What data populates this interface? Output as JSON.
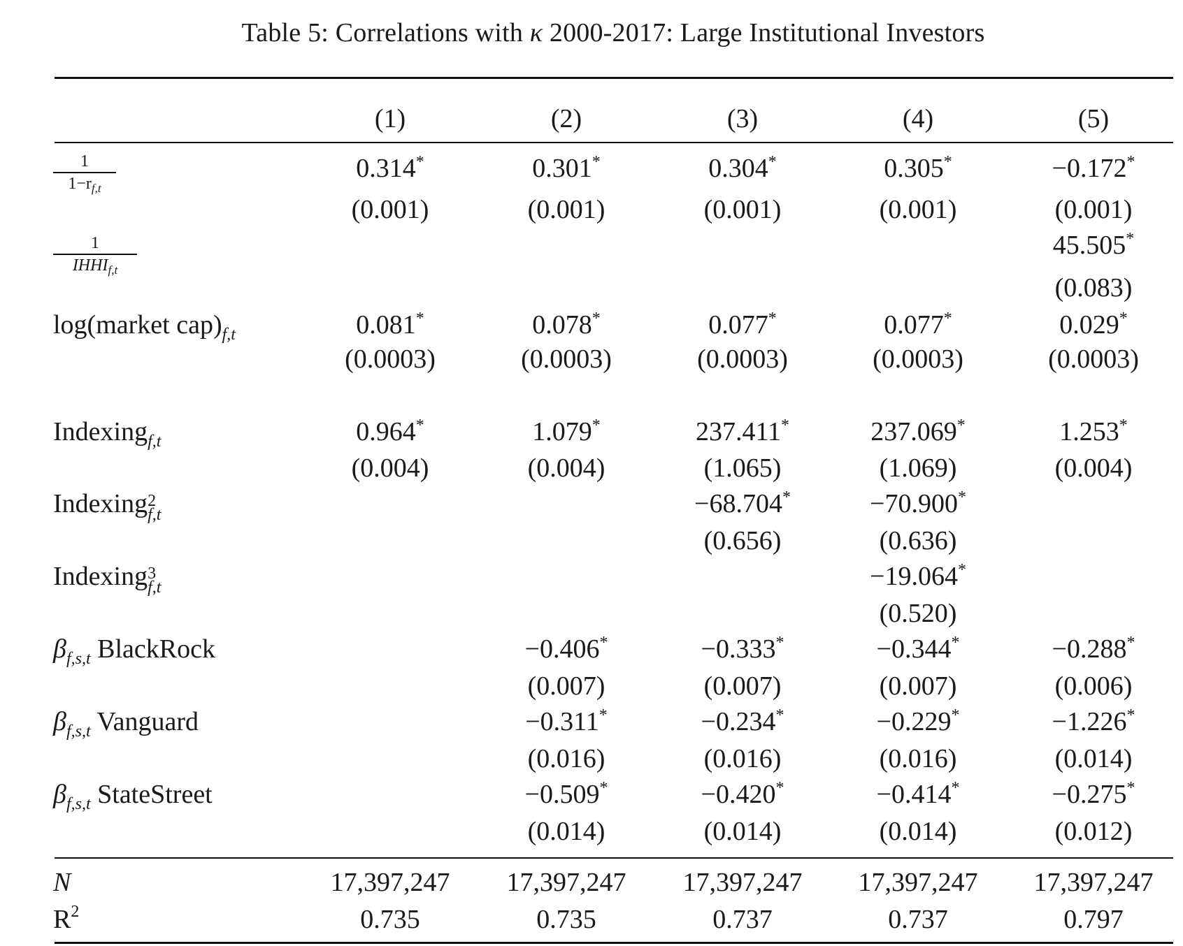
{
  "table": {
    "caption_prefix": "Table 5: Correlations with ",
    "caption_kappa": "κ",
    "caption_suffix": " 2000-2017: Large Institutional Investors",
    "columns": [
      "(1)",
      "(2)",
      "(3)",
      "(4)",
      "(5)"
    ],
    "labels": {
      "inv_one_minus_r_num": "1",
      "inv_one_minus_r_den": "1−r",
      "inv_ihhi_num": "1",
      "inv_ihhi_den": "IHHI",
      "sub_ft": "f,t",
      "log_mcap": "log(market cap)",
      "indexing": "Indexing",
      "sq": "2",
      "cube": "3",
      "beta": "β",
      "sub_fst": "f,s,t",
      "blackrock": " BlackRock",
      "vanguard": " Vanguard",
      "statestreet": " StateStreet",
      "n": "N",
      "r2": "R",
      "r2_sup": "2"
    },
    "rows": {
      "inv_one_minus_r": {
        "coef": [
          "0.314",
          "0.301",
          "0.304",
          "0.305",
          "−0.172"
        ],
        "se": [
          "(0.001)",
          "(0.001)",
          "(0.001)",
          "(0.001)",
          "(0.001)"
        ]
      },
      "inv_ihhi": {
        "coef": [
          "",
          "",
          "",
          "",
          "45.505"
        ],
        "se": [
          "",
          "",
          "",
          "",
          "(0.083)"
        ]
      },
      "log_mcap": {
        "coef": [
          "0.081",
          "0.078",
          "0.077",
          "0.077",
          "0.029"
        ],
        "se": [
          "(0.0003)",
          "(0.0003)",
          "(0.0003)",
          "(0.0003)",
          "(0.0003)"
        ]
      },
      "indexing": {
        "coef": [
          "0.964",
          "1.079",
          "237.411",
          "237.069",
          "1.253"
        ],
        "se": [
          "(0.004)",
          "(0.004)",
          "(1.065)",
          "(1.069)",
          "(0.004)"
        ]
      },
      "indexing_sq": {
        "coef": [
          "",
          "",
          "−68.704",
          "−70.900",
          ""
        ],
        "se": [
          "",
          "",
          "(0.656)",
          "(0.636)",
          ""
        ]
      },
      "indexing_cube": {
        "coef": [
          "",
          "",
          "",
          "−19.064",
          ""
        ],
        "se": [
          "",
          "",
          "",
          "(0.520)",
          ""
        ]
      },
      "beta_blackrock": {
        "coef": [
          "",
          "−0.406",
          "−0.333",
          "−0.344",
          "−0.288"
        ],
        "se": [
          "",
          "(0.007)",
          "(0.007)",
          "(0.007)",
          "(0.006)"
        ]
      },
      "beta_vanguard": {
        "coef": [
          "",
          "−0.311",
          "−0.234",
          "−0.229",
          "−1.226"
        ],
        "se": [
          "",
          "(0.016)",
          "(0.016)",
          "(0.016)",
          "(0.014)"
        ]
      },
      "beta_statestreet": {
        "coef": [
          "",
          "−0.509",
          "−0.420",
          "−0.414",
          "−0.275"
        ],
        "se": [
          "",
          "(0.014)",
          "(0.014)",
          "(0.014)",
          "(0.012)"
        ]
      }
    },
    "n_values": [
      "17,397,247",
      "17,397,247",
      "17,397,247",
      "17,397,247",
      "17,397,247"
    ],
    "r2_values": [
      "0.735",
      "0.735",
      "0.737",
      "0.737",
      "0.797"
    ],
    "significance_marker": "*"
  }
}
